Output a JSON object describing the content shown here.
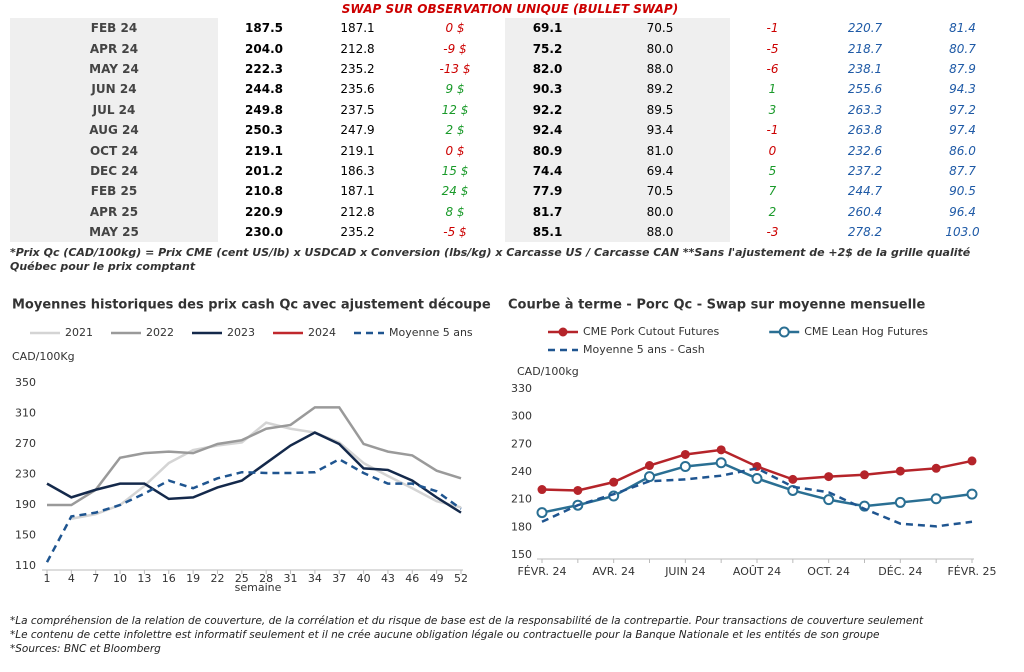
{
  "table": {
    "title": "SWAP SUR OBSERVATION UNIQUE (BULLET SWAP)",
    "rows": [
      [
        "FEB 24",
        "187.5",
        "187.1",
        "0 $",
        "69.1",
        "70.5",
        "-1",
        "220.7",
        "81.4"
      ],
      [
        "APR 24",
        "204.0",
        "212.8",
        "-9 $",
        "75.2",
        "80.0",
        "-5",
        "218.7",
        "80.7"
      ],
      [
        "MAY 24",
        "222.3",
        "235.2",
        "-13 $",
        "82.0",
        "88.0",
        "-6",
        "238.1",
        "87.9"
      ],
      [
        "JUN 24",
        "244.8",
        "235.6",
        "9 $",
        "90.3",
        "89.2",
        "1",
        "255.6",
        "94.3"
      ],
      [
        "JUL 24",
        "249.8",
        "237.5",
        "12 $",
        "92.2",
        "89.5",
        "3",
        "263.3",
        "97.2"
      ],
      [
        "AUG 24",
        "250.3",
        "247.9",
        "2 $",
        "92.4",
        "93.4",
        "-1",
        "263.8",
        "97.4"
      ],
      [
        "OCT 24",
        "219.1",
        "219.1",
        "0 $",
        "80.9",
        "81.0",
        "0",
        "232.6",
        "86.0"
      ],
      [
        "DEC 24",
        "201.2",
        "186.3",
        "15 $",
        "74.4",
        "69.4",
        "5",
        "237.2",
        "87.7"
      ],
      [
        "FEB 25",
        "210.8",
        "187.1",
        "24 $",
        "77.9",
        "70.5",
        "7",
        "244.7",
        "90.5"
      ],
      [
        "APR 25",
        "220.9",
        "212.8",
        "8 $",
        "81.7",
        "80.0",
        "2",
        "260.4",
        "96.4"
      ],
      [
        "MAY 25",
        "230.0",
        "235.2",
        "-5 $",
        "85.1",
        "88.0",
        "-3",
        "278.2",
        "103.0"
      ]
    ]
  },
  "notes": "*Prix Qc (CAD/100kg) = Prix CME (cent US/lb) x USDCAD x Conversion (lbs/kg) x Carcasse US / Carcasse CAN **Sans l'ajustement de +2$ de la grille qualité Québec pour le prix comptant",
  "chart_data": [
    {
      "type": "line",
      "title": "Moyennes historiques des prix cash Qc avec ajustement découpe",
      "y_label": "CAD/100Kg",
      "x_label": "semaine",
      "x": [
        1,
        4,
        7,
        10,
        13,
        16,
        19,
        22,
        25,
        28,
        31,
        34,
        37,
        40,
        43,
        46,
        49,
        52
      ],
      "xlim": [
        1,
        52
      ],
      "xticks": [
        1,
        4,
        7,
        10,
        13,
        16,
        19,
        22,
        25,
        28,
        31,
        34,
        37,
        40,
        43,
        46,
        49,
        52
      ],
      "ylim": [
        110,
        350
      ],
      "yticks": [
        110,
        150,
        190,
        230,
        270,
        310,
        350
      ],
      "grid": false,
      "series": [
        {
          "name": "2021",
          "color": "#d4d4d4",
          "style": "solid",
          "values": [
            null,
            172,
            178,
            190,
            215,
            245,
            262,
            268,
            272,
            298,
            290,
            285,
            272,
            245,
            228,
            212,
            195,
            187
          ]
        },
        {
          "name": "2022",
          "color": "#9a9a9a",
          "style": "solid",
          "values": [
            190,
            190,
            210,
            252,
            258,
            260,
            258,
            270,
            275,
            290,
            295,
            318,
            318,
            270,
            260,
            255,
            235,
            225
          ]
        },
        {
          "name": "2023",
          "color": "#14294b",
          "style": "solid",
          "values": [
            218,
            200,
            210,
            218,
            218,
            198,
            200,
            213,
            222,
            245,
            268,
            285,
            270,
            238,
            236,
            222,
            200,
            180
          ]
        },
        {
          "name": "2024",
          "color": "#c0282d",
          "style": "solid",
          "values": [
            null,
            null,
            null,
            null,
            null,
            null,
            null,
            null,
            null,
            null,
            null,
            null,
            null,
            null,
            null,
            null,
            null,
            null
          ]
        },
        {
          "name": "Moyenne 5 ans",
          "color": "#1f5590",
          "style": "dashed",
          "values": [
            115,
            175,
            180,
            190,
            205,
            222,
            212,
            225,
            233,
            232,
            232,
            233,
            250,
            232,
            218,
            218,
            208,
            185
          ]
        }
      ]
    },
    {
      "type": "line",
      "title": "Courbe à terme - Porc Qc - Swap sur moyenne mensuelle",
      "y_label": "CAD/100kg",
      "categories": [
        "FÉVR. 24",
        null,
        "AVR. 24",
        null,
        "JUIN 24",
        null,
        "AOÛT 24",
        null,
        "OCT. 24",
        null,
        "DÉC. 24",
        null,
        "FÉVR. 25"
      ],
      "ylim": [
        150,
        330
      ],
      "yticks": [
        150,
        180,
        210,
        240,
        270,
        300,
        330
      ],
      "grid": false,
      "series": [
        {
          "name": "CME Pork Cutout Futures",
          "color": "#b5242a",
          "style": "solid",
          "marker": "filled",
          "values": [
            221,
            220,
            229,
            247,
            259,
            264,
            246,
            232,
            235,
            237,
            241,
            244,
            252
          ]
        },
        {
          "name": "CME Lean Hog Futures",
          "color": "#2a6f93",
          "style": "solid",
          "marker": "open",
          "values": [
            196,
            204,
            214,
            235,
            246,
            250,
            233,
            220,
            210,
            203,
            207,
            211,
            216
          ]
        },
        {
          "name": "Moyenne 5 ans - Cash",
          "color": "#1f5590",
          "style": "dashed",
          "values": [
            186,
            204,
            216,
            230,
            232,
            236,
            244,
            224,
            218,
            200,
            184,
            181,
            186
          ]
        }
      ]
    }
  ],
  "footer": [
    "*La compréhension de la relation de couverture, de la corrélation et du risque de base est de la responsabilité de la contrepartie. Pour transactions de couverture seulement",
    "*Le contenu de cette infolettre est informatif seulement et il ne crée aucune obligation légale ou contractuelle pour la Banque Nationale et les entités de son groupe",
    "*Sources: BNC et Bloomberg"
  ]
}
